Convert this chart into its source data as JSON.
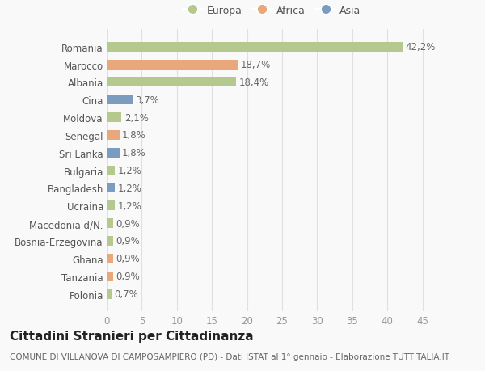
{
  "categories": [
    "Romania",
    "Marocco",
    "Albania",
    "Cina",
    "Moldova",
    "Senegal",
    "Sri Lanka",
    "Bulgaria",
    "Bangladesh",
    "Ucraina",
    "Macedonia d/N.",
    "Bosnia-Erzegovina",
    "Ghana",
    "Tanzania",
    "Polonia"
  ],
  "values": [
    42.2,
    18.7,
    18.4,
    3.7,
    2.1,
    1.8,
    1.8,
    1.2,
    1.2,
    1.2,
    0.9,
    0.9,
    0.9,
    0.9,
    0.7
  ],
  "labels": [
    "42,2%",
    "18,7%",
    "18,4%",
    "3,7%",
    "2,1%",
    "1,8%",
    "1,8%",
    "1,2%",
    "1,2%",
    "1,2%",
    "0,9%",
    "0,9%",
    "0,9%",
    "0,9%",
    "0,7%"
  ],
  "colors": [
    "#b5c98e",
    "#e8a87c",
    "#b5c98e",
    "#7a9cbf",
    "#b5c98e",
    "#e8a87c",
    "#7a9cbf",
    "#b5c98e",
    "#7a9cbf",
    "#b5c98e",
    "#b5c98e",
    "#b5c98e",
    "#e8a87c",
    "#e8a87c",
    "#b5c98e"
  ],
  "legend_labels": [
    "Europa",
    "Africa",
    "Asia"
  ],
  "legend_colors": [
    "#b5c98e",
    "#e8a87c",
    "#7a9cbf"
  ],
  "title": "Cittadini Stranieri per Cittadinanza",
  "subtitle": "COMUNE DI VILLANOVA DI CAMPOSAMPIERO (PD) - Dati ISTAT al 1° gennaio - Elaborazione TUTTITALIA.IT",
  "xlim": [
    0,
    47
  ],
  "xticks": [
    0,
    5,
    10,
    15,
    20,
    25,
    30,
    35,
    40,
    45
  ],
  "background_color": "#f9f9f9",
  "grid_color": "#e0e0e0",
  "bar_height": 0.55,
  "label_fontsize": 8.5,
  "tick_fontsize": 8.5,
  "title_fontsize": 11,
  "subtitle_fontsize": 7.5
}
